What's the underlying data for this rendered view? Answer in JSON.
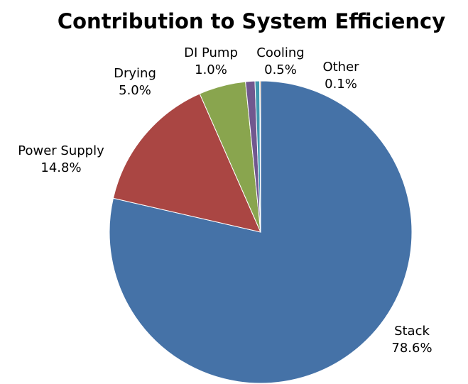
{
  "chart_data": {
    "type": "pie",
    "title": "Contribution to System Efficiency",
    "slices": [
      {
        "label": "Stack",
        "value": 78.6,
        "value_label": "78.6%",
        "color": "#4572A7"
      },
      {
        "label": "Power Supply",
        "value": 14.8,
        "value_label": "14.8%",
        "color": "#AA4643"
      },
      {
        "label": "Drying",
        "value": 5.0,
        "value_label": "5.0%",
        "color": "#89A54E"
      },
      {
        "label": "DI Pump",
        "value": 1.0,
        "value_label": "1.0%",
        "color": "#71588F"
      },
      {
        "label": "Cooling",
        "value": 0.5,
        "value_label": "0.5%",
        "color": "#4198AF"
      },
      {
        "label": "Other",
        "value": 0.1,
        "value_label": "0.1%",
        "color": "#DB843D"
      }
    ],
    "start_angle": "12 o'clock",
    "direction": "clockwise",
    "legend": "none",
    "data_labels": "outside"
  }
}
